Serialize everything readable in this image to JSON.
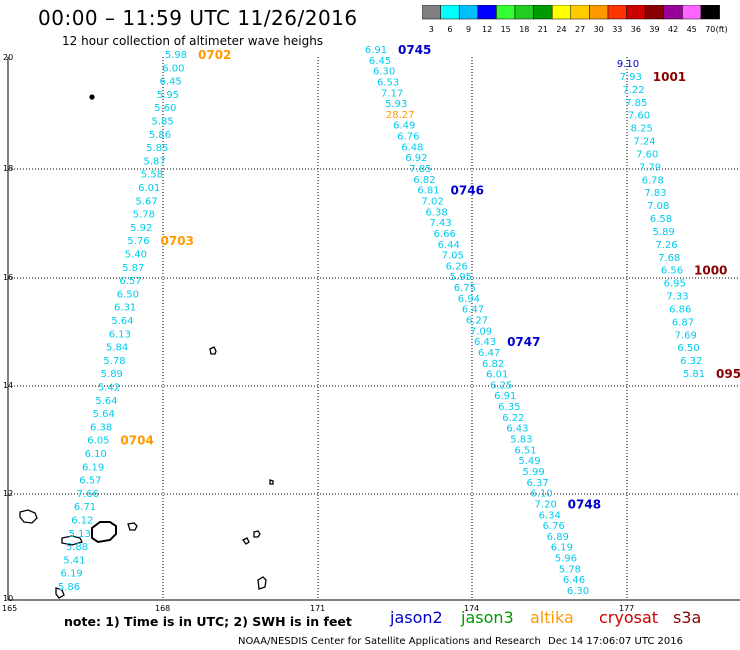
{
  "title": "00:00 – 11:59 UTC 11/26/2016",
  "subtitle": "12 hour collection of altimeter wave heighs",
  "footnote": "note: 1) Time is in UTC; 2) SWH is in feet",
  "credit": "NOAA/NESDIS Center for Satellite Applications and Research",
  "timestamp": "Dec 14 17:06:07 UTC 2016",
  "scale": {
    "unit": "(ft)",
    "thresholds": [
      "3",
      "6",
      "9",
      "12",
      "15",
      "18",
      "21",
      "24",
      "27",
      "30",
      "33",
      "36",
      "39",
      "42",
      "45",
      "70"
    ],
    "colors": [
      "#7f7f7f",
      "#00ffff",
      "#00bfff",
      "#0000ff",
      "#33ff33",
      "#22cc22",
      "#009900",
      "#ffff00",
      "#ffcc00",
      "#ff9900",
      "#ff3300",
      "#cc0000",
      "#880000",
      "#990099",
      "#ff66ff",
      "#000000"
    ]
  },
  "legend": [
    {
      "name": "jason2",
      "color": "#0000cc"
    },
    {
      "name": "jason3",
      "color": "#009900"
    },
    {
      "name": "altika",
      "color": "#ff9900"
    },
    {
      "name": "cryosat",
      "color": "#cc0000"
    },
    {
      "name": "s3a",
      "color": "#880000"
    }
  ],
  "axes": {
    "x_ticks": [
      "165",
      "168",
      "171",
      "174",
      "177"
    ],
    "y_ticks": [
      "10",
      "12",
      "14",
      "16",
      "18",
      "20"
    ]
  },
  "tracks": [
    {
      "id": "altika",
      "color": "#00ccee",
      "label_color": "#ff9900",
      "start": [
        176,
        58
      ],
      "end": [
        69,
        590
      ],
      "values": [
        "5.98",
        "6.00",
        "6.45",
        "5.95",
        "5.60",
        "5.85",
        "5.86",
        "5.85",
        "5.87",
        "5.58",
        "6.01",
        "5.67",
        "5.78",
        "5.92",
        "5.76",
        "5.40",
        "5.87",
        "6.57",
        "6.50",
        "6.31",
        "5.64",
        "6.13",
        "5.84",
        "5.78",
        "5.89",
        "5.42",
        "5.64",
        "5.64",
        "6.38",
        "6.05",
        "6.10",
        "6.19",
        "6.57",
        "7.66",
        "6.71",
        "6.12",
        "5.13",
        "5.88",
        "5.41",
        "6.19",
        "5.86"
      ],
      "times": [
        {
          "label": "0702",
          "index": 0
        },
        {
          "label": "0703",
          "index": 14
        },
        {
          "label": "0704",
          "index": 29
        }
      ]
    },
    {
      "id": "jason2",
      "color": "#00ccee",
      "label_color": "#0000cc",
      "start": [
        376,
        53
      ],
      "end": [
        578,
        594
      ],
      "values": [
        "6.91",
        "6.45",
        "6.30",
        "6.53",
        "7.17",
        "5.93",
        "28.27",
        "6.49",
        "6.76",
        "6.48",
        "6.92",
        "7.85",
        "6.82",
        "6.81",
        "7.02",
        "6.38",
        "7.43",
        "6.66",
        "6.44",
        "7.05",
        "6.26",
        "5.95",
        "6.75",
        "6.94",
        "6.47",
        "6.27",
        "7.09",
        "6.43",
        "6.47",
        "6.82",
        "6.01",
        "6.25",
        "6.91",
        "6.35",
        "6.22",
        "6.43",
        "5.83",
        "6.51",
        "5.49",
        "5.99",
        "6.37",
        "6.10",
        "7.20",
        "6.34",
        "6.76",
        "6.89",
        "6.19",
        "5.96",
        "5.78",
        "6.46",
        "6.30"
      ],
      "special": [
        {
          "index": 6,
          "color": "#ff9900"
        }
      ],
      "times": [
        {
          "label": "0745",
          "index": 0
        },
        {
          "label": "0746",
          "index": 13
        },
        {
          "label": "0747",
          "index": 27
        },
        {
          "label": "0748",
          "index": 42
        }
      ]
    },
    {
      "id": "s3a",
      "color": "#00ccee",
      "label_color": "#880000",
      "start": [
        628,
        67
      ],
      "end": [
        694,
        377
      ],
      "values": [
        "9.10",
        "7.93",
        "7.22",
        "7.85",
        "7.60",
        "8.25",
        "7.24",
        "7.60",
        "7.79",
        "6.78",
        "7.83",
        "7.08",
        "6.58",
        "5.89",
        "7.26",
        "7.68",
        "6.56",
        "6.95",
        "7.33",
        "6.86",
        "6.87",
        "7.69",
        "6.50",
        "6.32",
        "5.81"
      ],
      "special": [
        {
          "index": 0,
          "color": "#0000cc"
        }
      ],
      "times": [
        {
          "label": "1001",
          "index": 1
        },
        {
          "label": "1000",
          "index": 16
        },
        {
          "label": "095",
          "index": 24
        }
      ]
    }
  ]
}
